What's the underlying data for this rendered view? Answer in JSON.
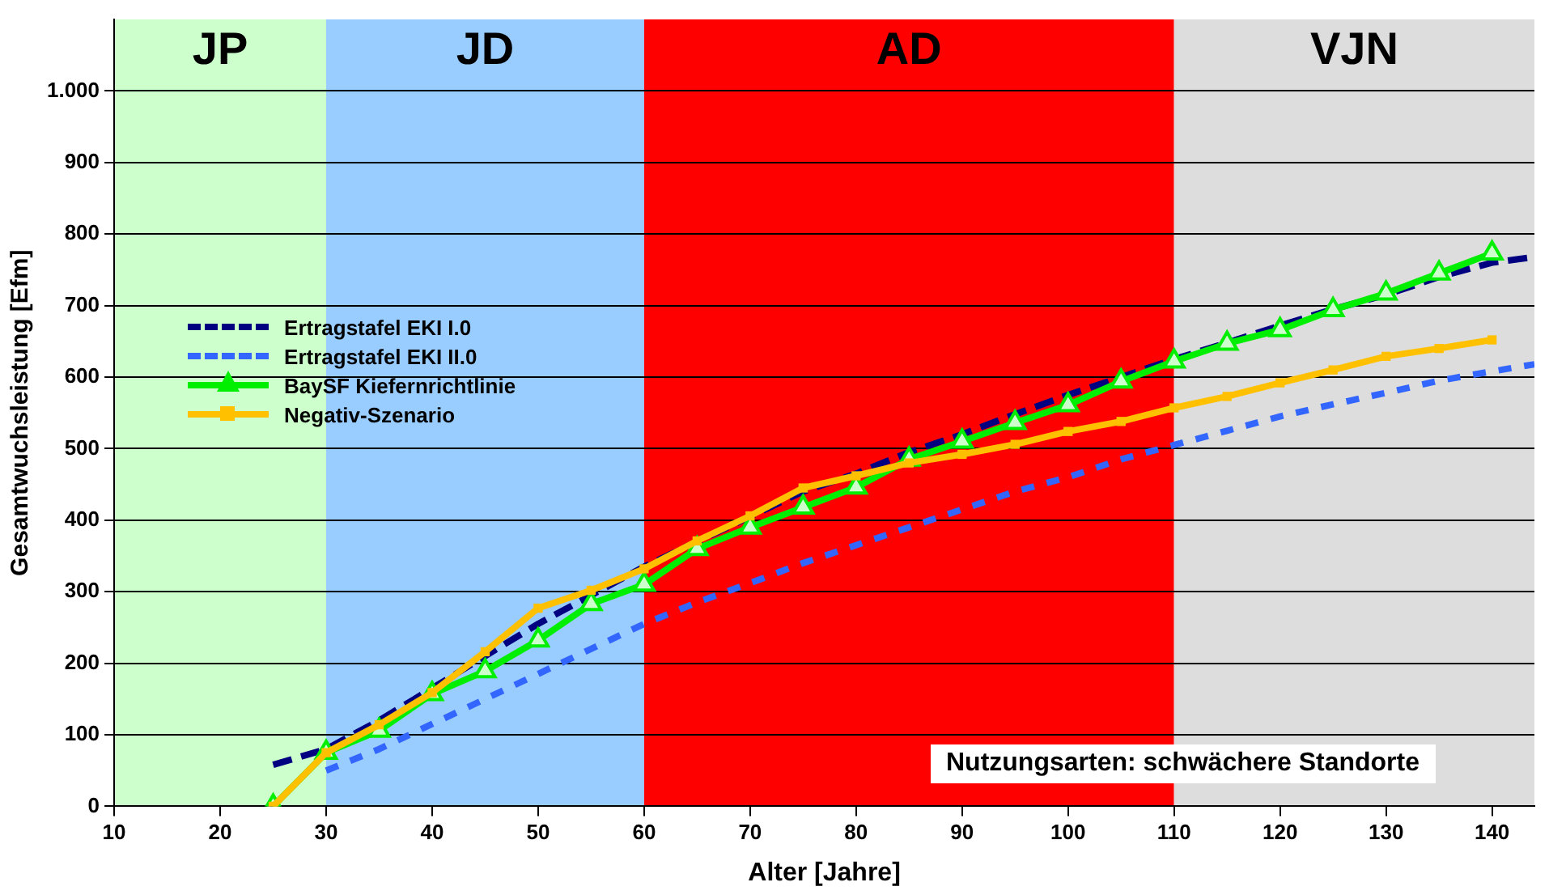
{
  "chart_data": {
    "type": "line",
    "xlabel": "Alter [Jahre]",
    "ylabel": "Gesamtwuchsleistung [Efm]",
    "xlim": [
      10,
      144
    ],
    "xticks": [
      10,
      20,
      30,
      40,
      50,
      60,
      70,
      80,
      90,
      100,
      110,
      120,
      130,
      140
    ],
    "ylim": [
      0,
      1100
    ],
    "yticks": [
      0,
      100,
      200,
      300,
      400,
      500,
      600,
      700,
      800,
      900,
      {
        "value": 1000,
        "label": "1.000"
      }
    ],
    "grid": "y",
    "legend": "left",
    "bands": [
      {
        "axis": "x",
        "from": 10,
        "to": 30,
        "label": "JP",
        "color": "#ccffcc"
      },
      {
        "axis": "x",
        "from": 30,
        "to": 60,
        "label": "JD",
        "color": "#99ccff"
      },
      {
        "axis": "x",
        "from": 60,
        "to": 110,
        "label": "AD",
        "color": "#ff0000"
      },
      {
        "axis": "x",
        "from": 110,
        "to": 144,
        "label": "VJN",
        "color": "#dddddd"
      }
    ],
    "annotations": [
      "Nutzungsarten:  schwächere Standorte"
    ],
    "series": [
      {
        "name": "Ertragstafel EKI I.0",
        "color": "#000080",
        "line_style": "dashed",
        "marker": "none",
        "x": [
          25,
          30,
          35,
          40,
          45,
          50,
          55,
          60,
          65,
          70,
          75,
          80,
          85,
          90,
          95,
          100,
          105,
          110,
          115,
          120,
          125,
          130,
          135,
          140,
          144
        ],
        "values": [
          58,
          80,
          120,
          165,
          210,
          255,
          295,
          335,
          370,
          405,
          440,
          465,
          495,
          520,
          548,
          575,
          600,
          625,
          648,
          672,
          695,
          715,
          740,
          760,
          768
        ]
      },
      {
        "name": "Ertragstafel EKI II.0",
        "color": "#3366ff",
        "line_style": "dotted",
        "marker": "none",
        "x": [
          30,
          35,
          40,
          45,
          50,
          55,
          60,
          65,
          70,
          75,
          80,
          85,
          90,
          95,
          100,
          105,
          110,
          115,
          120,
          125,
          130,
          135,
          140,
          144
        ],
        "values": [
          50,
          80,
          115,
          150,
          185,
          220,
          255,
          285,
          312,
          340,
          365,
          390,
          415,
          440,
          460,
          485,
          505,
          525,
          545,
          562,
          578,
          595,
          608,
          618
        ]
      },
      {
        "name": "BaySF Kiefernrichtlinie",
        "color": "#00ee00",
        "line_style": "solid",
        "marker": "triangle",
        "x": [
          25,
          30,
          35,
          40,
          45,
          50,
          55,
          60,
          65,
          70,
          75,
          80,
          85,
          90,
          95,
          100,
          105,
          110,
          115,
          120,
          125,
          130,
          135,
          140
        ],
        "values": [
          0,
          75,
          106,
          157,
          189,
          232,
          283,
          310,
          360,
          390,
          418,
          446,
          485,
          510,
          536,
          561,
          594,
          622,
          647,
          666,
          694,
          717,
          745,
          773
        ]
      },
      {
        "name": "Negativ-Szenario",
        "color": "#ffc000",
        "line_style": "solid",
        "marker": "square",
        "x": [
          25,
          30,
          35,
          40,
          45,
          50,
          55,
          60,
          65,
          70,
          75,
          80,
          85,
          90,
          95,
          100,
          105,
          110,
          115,
          120,
          125,
          130,
          135,
          140
        ],
        "values": [
          0,
          75,
          114,
          159,
          216,
          277,
          302,
          332,
          371,
          406,
          445,
          462,
          480,
          492,
          506,
          524,
          538,
          557,
          573,
          592,
          610,
          629,
          640,
          652
        ]
      }
    ]
  }
}
